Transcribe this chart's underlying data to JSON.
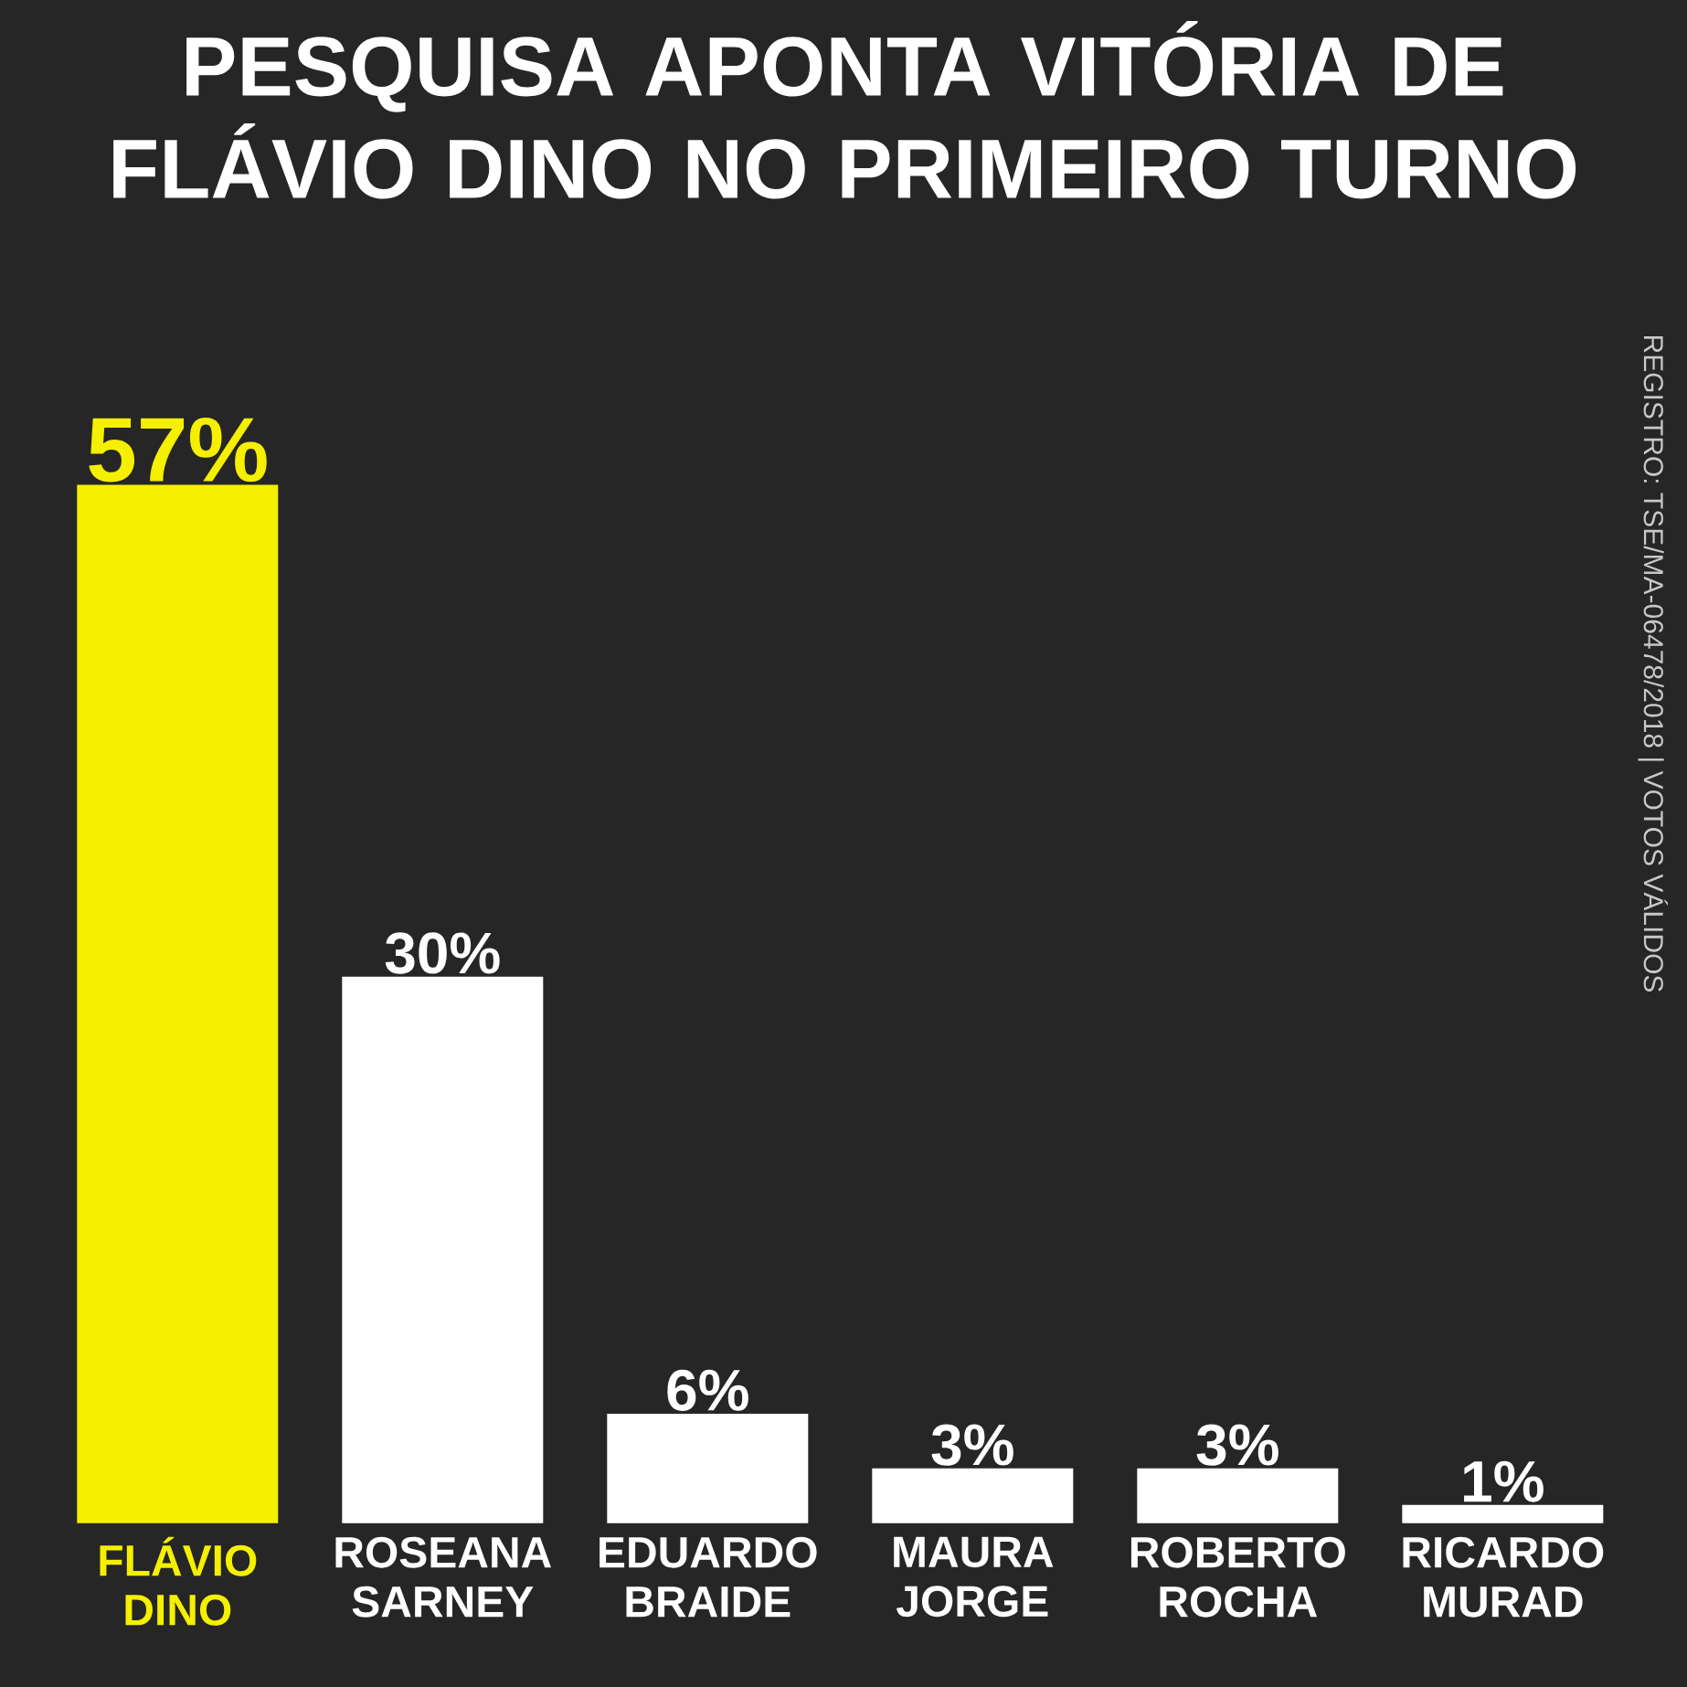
{
  "chart_data": {
    "type": "bar",
    "title": "PESQUISA APONTA VITÓRIA DE FLÁVIO DINO NO PRIMEIRO TURNO",
    "annotations": [
      "REGISTRO: TSE/MA-06478/2018 | VOTOS VÁLIDOS"
    ],
    "categories": [
      "FLÁVIO DINO",
      "ROSEANA SARNEY",
      "EDUARDO BRAIDE",
      "MAURA JORGE",
      "ROBERTO ROCHA",
      "RICARDO MURAD"
    ],
    "values": [
      57,
      30,
      6,
      3,
      3,
      1
    ],
    "value_labels": [
      "57%",
      "30%",
      "6%",
      "3%",
      "3%",
      "1%"
    ],
    "colors": [
      "#f5ef00",
      "#ffffff",
      "#ffffff",
      "#ffffff",
      "#ffffff",
      "#ffffff"
    ]
  }
}
